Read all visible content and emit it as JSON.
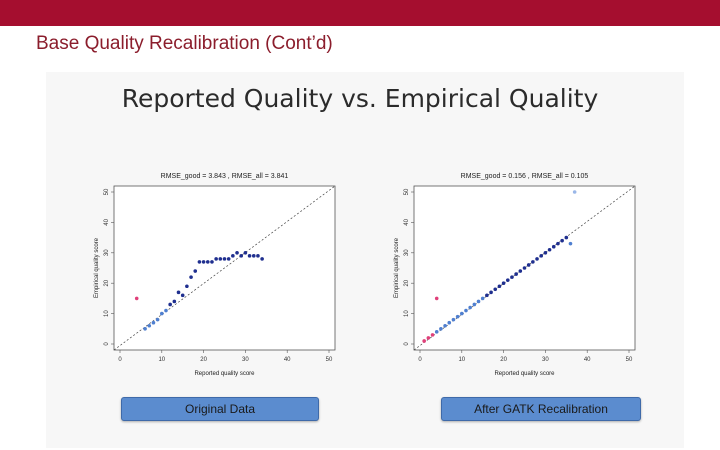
{
  "slide": {
    "title": "Base Quality Recalibration (Cont’d)",
    "heading": "Reported Quality vs. Empirical Quality",
    "colors": {
      "top_bar": "#a50e2f",
      "title": "#8b1d2c",
      "caption_fill": "#5b8ccf"
    }
  },
  "plots": [
    {
      "caption": "Original Data",
      "rmse_text": "RMSE_good = 3.843 , RMSE_all = 3.841",
      "xlabel": "Reported quality score",
      "ylabel": "Empirical quality score",
      "x_ticks": [
        "0",
        "10",
        "20",
        "30",
        "40",
        "50"
      ],
      "y_ticks": [
        "0",
        "10",
        "20",
        "30",
        "40",
        "50"
      ]
    },
    {
      "caption": "After GATK Recalibration",
      "rmse_text": "RMSE_good = 0.156 , RMSE_all = 0.105",
      "xlabel": "Reported quality score",
      "ylabel": "Empirical quality score",
      "x_ticks": [
        "0",
        "10",
        "20",
        "30",
        "40",
        "50"
      ],
      "y_ticks": [
        "0",
        "10",
        "20",
        "30",
        "40",
        "50"
      ]
    }
  ],
  "chart_data": [
    {
      "type": "scatter",
      "title": "RMSE_good = 3.843 , RMSE_all = 3.841",
      "xlabel": "Reported quality score",
      "ylabel": "Empirical quality score",
      "xlim": [
        0,
        50
      ],
      "ylim": [
        0,
        50
      ],
      "reference_line": "y = x (dashed)",
      "series": [
        {
          "color": "#1f2f8f",
          "x": [
            12,
            13,
            14,
            15,
            16,
            17,
            18,
            19,
            20,
            21,
            22,
            23,
            24,
            25,
            26,
            27,
            28,
            29,
            30,
            31,
            32,
            33,
            34
          ],
          "y": [
            13,
            14,
            17,
            16,
            19,
            22,
            24,
            27,
            27,
            27,
            27,
            28,
            28,
            28,
            28,
            29,
            30,
            29,
            30,
            29,
            29,
            29,
            28
          ]
        },
        {
          "color": "#4f7fd0",
          "x": [
            6,
            7,
            8,
            9,
            10,
            11
          ],
          "y": [
            5,
            6,
            7,
            8,
            10,
            11
          ]
        },
        {
          "color": "#e0407a",
          "x": [
            4
          ],
          "y": [
            15
          ]
        }
      ]
    },
    {
      "type": "scatter",
      "title": "RMSE_good = 0.156 , RMSE_all = 0.105",
      "xlabel": "Reported quality score",
      "ylabel": "Empirical quality score",
      "xlim": [
        0,
        50
      ],
      "ylim": [
        0,
        50
      ],
      "reference_line": "y = x (dashed)",
      "series": [
        {
          "color": "#1f2f8f",
          "x": [
            16,
            17,
            18,
            19,
            20,
            21,
            22,
            23,
            24,
            25,
            26,
            27,
            28,
            29,
            30,
            31,
            32,
            33,
            34,
            35
          ],
          "y": [
            16,
            17,
            18,
            19,
            20,
            21,
            22,
            23,
            24,
            25,
            26,
            27,
            28,
            29,
            30,
            31,
            32,
            33,
            34,
            35
          ]
        },
        {
          "color": "#4f7fd0",
          "x": [
            4,
            5,
            6,
            7,
            8,
            9,
            10,
            11,
            12,
            13,
            14,
            15,
            36
          ],
          "y": [
            4,
            5,
            6,
            7,
            8,
            9,
            10,
            11,
            12,
            13,
            14,
            15,
            33
          ]
        },
        {
          "color": "#e0407a",
          "x": [
            1,
            2,
            3,
            4
          ],
          "y": [
            1,
            2,
            3,
            15
          ]
        },
        {
          "color": "#9ab7e8",
          "x": [
            37
          ],
          "y": [
            50
          ]
        }
      ]
    }
  ]
}
